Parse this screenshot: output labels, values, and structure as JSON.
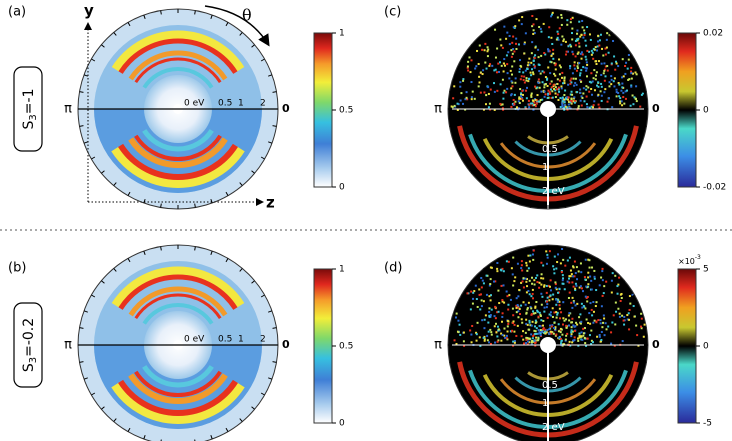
{
  "panels": [
    {
      "label": "(a)",
      "s3": {
        "symbol": "S",
        "subscript": "3",
        "value": "=-1"
      },
      "axis": {
        "left": "π",
        "right": "0",
        "radial": [
          "0 eV",
          "0.5",
          "1",
          "2"
        ]
      },
      "frame": {
        "y": "y",
        "z": "z",
        "theta": "θ"
      },
      "colorbar": {
        "ticks": [
          "1",
          "0.5",
          "0"
        ]
      }
    },
    {
      "label": "(c)",
      "axis": {
        "left": "π",
        "right": "0",
        "radial": [
          "0.5",
          "1",
          "2 eV"
        ]
      },
      "colorbar": {
        "ticks": [
          "0.02",
          "0",
          "-0.02"
        ]
      }
    },
    {
      "label": "(b)",
      "s3": {
        "symbol": "S",
        "subscript": "3",
        "value": "=-0.2"
      },
      "axis": {
        "left": "π",
        "right": "0",
        "radial": [
          "0 eV",
          "0.5",
          "1",
          "2"
        ]
      },
      "colorbar": {
        "ticks": [
          "1",
          "0.5",
          "0"
        ]
      }
    },
    {
      "label": "(d)",
      "axis": {
        "left": "π",
        "right": "0",
        "radial": [
          "0.5",
          "1",
          "2 eV"
        ]
      },
      "colorbar": {
        "ticks": [
          "5",
          "0",
          "-5"
        ],
        "multiplier": {
          "base": "×10",
          "exponent": "-3"
        }
      }
    }
  ]
}
